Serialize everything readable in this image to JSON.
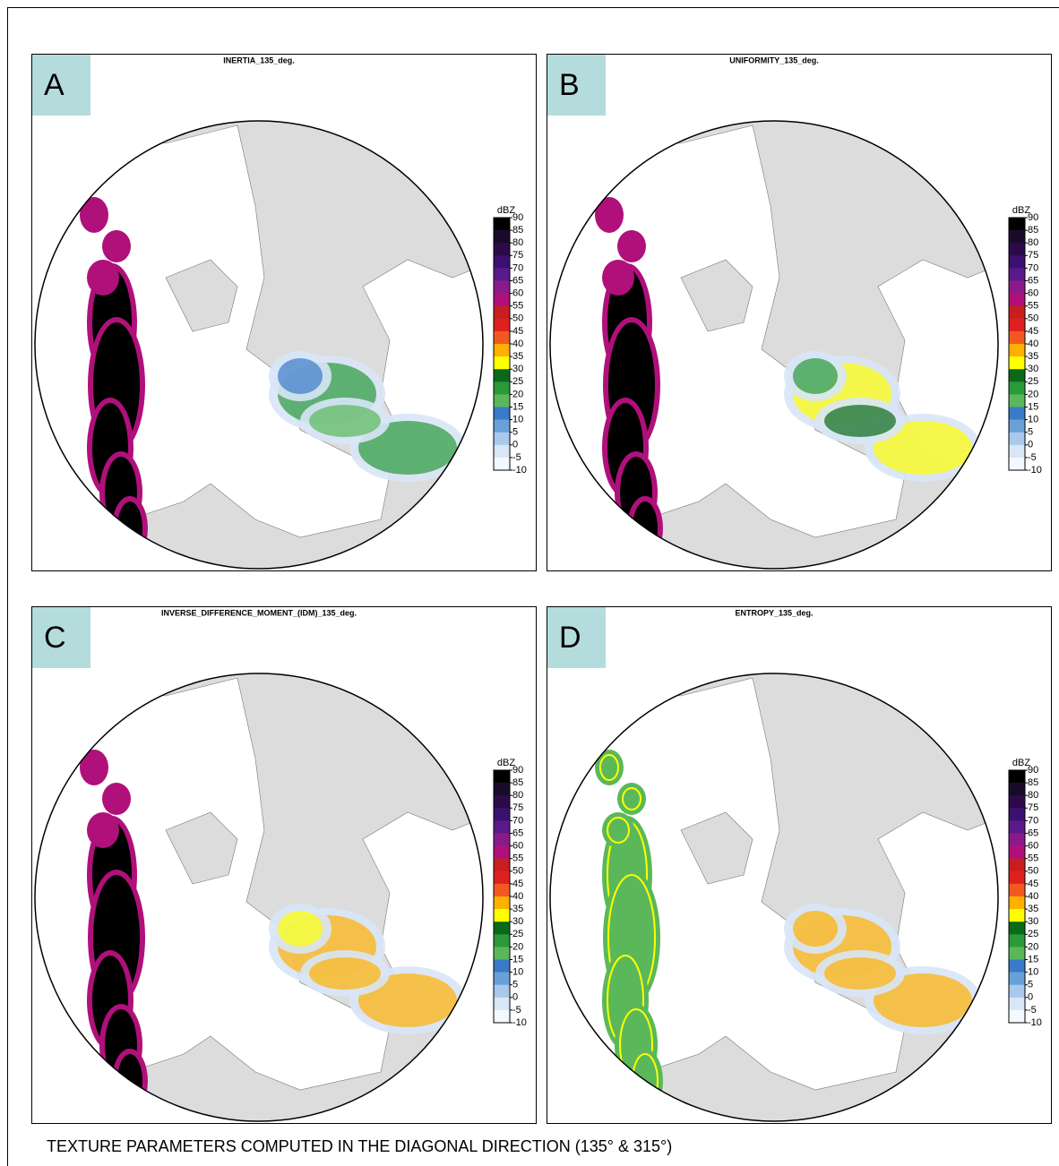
{
  "figure": {
    "caption": "TEXTURE PARAMETERS COMPUTED IN THE DIAGONAL DIRECTION (135° & 315°)",
    "colorbar": {
      "units": "dBZ",
      "ticks": [
        90,
        85,
        80,
        75,
        70,
        65,
        60,
        55,
        50,
        45,
        40,
        35,
        30,
        25,
        20,
        15,
        10,
        5,
        0,
        -5,
        -10
      ],
      "colors": [
        "#000000",
        "#1a0a2a",
        "#2c0a4a",
        "#3c1070",
        "#5a1a8a",
        "#8a1a8a",
        "#b0107a",
        "#c81e1e",
        "#e02020",
        "#f05a20",
        "#ffb000",
        "#ffff00",
        "#0a6a1a",
        "#2a9a3a",
        "#5ab85a",
        "#3a7ac8",
        "#6aa0d8",
        "#a8c8ec",
        "#d8e6f6",
        "#f4f8ff"
      ]
    },
    "panels": [
      {
        "label": "A",
        "title": "INERTIA_135_deg."
      },
      {
        "label": "B",
        "title": "UNIFORMITY_135_deg."
      },
      {
        "label": "C",
        "title": "INVERSE_DIFFERENCE_MOMENT_(IDM)_135_deg."
      },
      {
        "label": "D",
        "title": "ENTROPY_135_deg."
      }
    ]
  }
}
